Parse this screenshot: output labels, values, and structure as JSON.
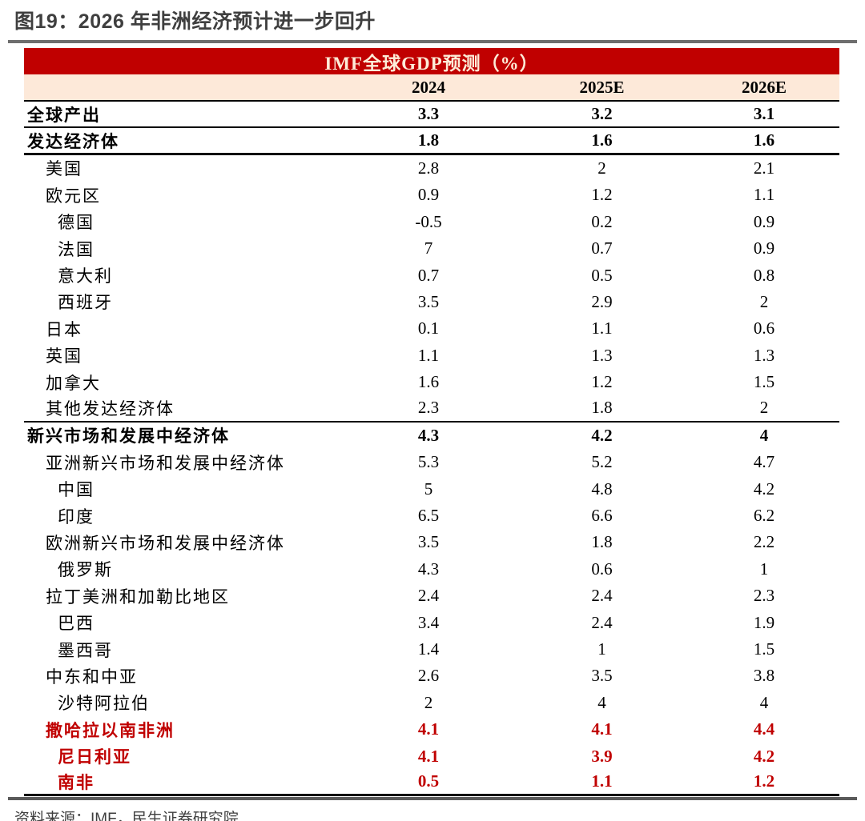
{
  "figure": {
    "title": "图19：2026 年非洲经济预计进一步回升",
    "source": "资料来源：IMF，民生证券研究院"
  },
  "colors": {
    "accent_red": "#c00000",
    "header_cream": "#fde9d9",
    "title_gray": "#3f3f3f",
    "rule_gray": "#5a5a5a"
  },
  "chart_data": {
    "type": "table",
    "title": "IMF全球GDP预测（%）",
    "columns": [
      "2024",
      "2025E",
      "2026E"
    ],
    "rows": [
      {
        "label": "全球产出",
        "indent": 0,
        "bold": true,
        "red": false,
        "rule": "rule",
        "values": [
          "3.3",
          "3.2",
          "3.1"
        ]
      },
      {
        "label": "发达经济体",
        "indent": 0,
        "bold": true,
        "red": false,
        "rule": "rule2",
        "values": [
          "1.8",
          "1.6",
          "1.6"
        ]
      },
      {
        "label": "美国",
        "indent": 1,
        "bold": false,
        "red": false,
        "rule": "",
        "values": [
          "2.8",
          "2",
          "2.1"
        ]
      },
      {
        "label": "欧元区",
        "indent": 1,
        "bold": false,
        "red": false,
        "rule": "",
        "values": [
          "0.9",
          "1.2",
          "1.1"
        ]
      },
      {
        "label": "德国",
        "indent": 2,
        "bold": false,
        "red": false,
        "rule": "",
        "values": [
          "-0.5",
          "0.2",
          "0.9"
        ]
      },
      {
        "label": "法国",
        "indent": 2,
        "bold": false,
        "red": false,
        "rule": "",
        "values": [
          "7",
          "0.7",
          "0.9"
        ]
      },
      {
        "label": "意大利",
        "indent": 2,
        "bold": false,
        "red": false,
        "rule": "",
        "values": [
          "0.7",
          "0.5",
          "0.8"
        ]
      },
      {
        "label": "西班牙",
        "indent": 2,
        "bold": false,
        "red": false,
        "rule": "",
        "values": [
          "3.5",
          "2.9",
          "2"
        ]
      },
      {
        "label": "日本",
        "indent": 1,
        "bold": false,
        "red": false,
        "rule": "",
        "values": [
          "0.1",
          "1.1",
          "0.6"
        ]
      },
      {
        "label": "英国",
        "indent": 1,
        "bold": false,
        "red": false,
        "rule": "",
        "values": [
          "1.1",
          "1.3",
          "1.3"
        ]
      },
      {
        "label": "加拿大",
        "indent": 1,
        "bold": false,
        "red": false,
        "rule": "",
        "values": [
          "1.6",
          "1.2",
          "1.5"
        ]
      },
      {
        "label": "其他发达经济体",
        "indent": 1,
        "bold": false,
        "red": false,
        "rule": "rule",
        "values": [
          "2.3",
          "1.8",
          "2"
        ]
      },
      {
        "label": "新兴市场和发展中经济体",
        "indent": 0,
        "bold": true,
        "red": false,
        "rule": "",
        "values": [
          "4.3",
          "4.2",
          "4"
        ]
      },
      {
        "label": "亚洲新兴市场和发展中经济体",
        "indent": 1,
        "bold": false,
        "red": false,
        "rule": "",
        "values": [
          "5.3",
          "5.2",
          "4.7"
        ]
      },
      {
        "label": "中国",
        "indent": 2,
        "bold": false,
        "red": false,
        "rule": "",
        "values": [
          "5",
          "4.8",
          "4.2"
        ]
      },
      {
        "label": "印度",
        "indent": 2,
        "bold": false,
        "red": false,
        "rule": "",
        "values": [
          "6.5",
          "6.6",
          "6.2"
        ]
      },
      {
        "label": "欧洲新兴市场和发展中经济体",
        "indent": 1,
        "bold": false,
        "red": false,
        "rule": "",
        "values": [
          "3.5",
          "1.8",
          "2.2"
        ]
      },
      {
        "label": "俄罗斯",
        "indent": 2,
        "bold": false,
        "red": false,
        "rule": "",
        "values": [
          "4.3",
          "0.6",
          "1"
        ]
      },
      {
        "label": "拉丁美洲和加勒比地区",
        "indent": 1,
        "bold": false,
        "red": false,
        "rule": "",
        "values": [
          "2.4",
          "2.4",
          "2.3"
        ]
      },
      {
        "label": "巴西",
        "indent": 2,
        "bold": false,
        "red": false,
        "rule": "",
        "values": [
          "3.4",
          "2.4",
          "1.9"
        ]
      },
      {
        "label": "墨西哥",
        "indent": 2,
        "bold": false,
        "red": false,
        "rule": "",
        "values": [
          "1.4",
          "1",
          "1.5"
        ]
      },
      {
        "label": "中东和中亚",
        "indent": 1,
        "bold": false,
        "red": false,
        "rule": "",
        "values": [
          "2.6",
          "3.5",
          "3.8"
        ]
      },
      {
        "label": "沙特阿拉伯",
        "indent": 2,
        "bold": false,
        "red": false,
        "rule": "",
        "values": [
          "2",
          "4",
          "4"
        ]
      },
      {
        "label": "撒哈拉以南非洲",
        "indent": 1,
        "bold": true,
        "red": true,
        "rule": "",
        "values": [
          "4.1",
          "4.1",
          "4.4"
        ]
      },
      {
        "label": "尼日利亚",
        "indent": 2,
        "bold": true,
        "red": true,
        "rule": "",
        "values": [
          "4.1",
          "3.9",
          "4.2"
        ]
      },
      {
        "label": "南非",
        "indent": 2,
        "bold": true,
        "red": true,
        "rule": "rule2",
        "values": [
          "0.5",
          "1.1",
          "1.2"
        ]
      }
    ]
  }
}
